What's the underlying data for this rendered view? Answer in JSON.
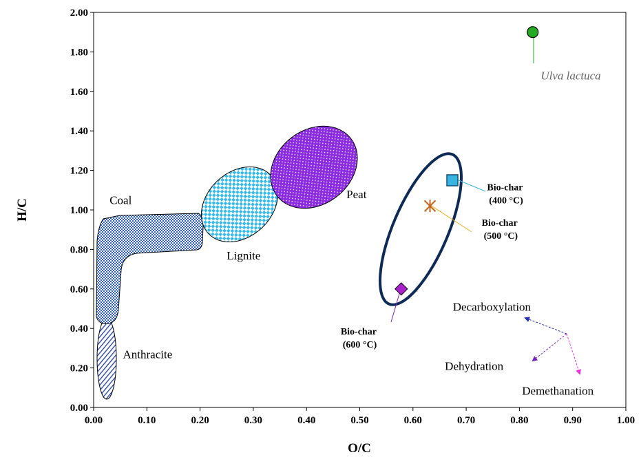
{
  "chart_data": {
    "type": "scatter",
    "title": "",
    "xlabel": "O/C",
    "ylabel": "H/C",
    "xlim": [
      0,
      1
    ],
    "ylim": [
      0,
      2
    ],
    "xticks": [
      "0.00",
      "0.10",
      "0.20",
      "0.30",
      "0.40",
      "0.50",
      "0.60",
      "0.70",
      "0.80",
      "0.90",
      "1.00"
    ],
    "yticks": [
      "0.00",
      "0.20",
      "0.40",
      "0.60",
      "0.80",
      "1.00",
      "1.20",
      "1.40",
      "1.60",
      "1.80",
      "2.00"
    ],
    "grid": false,
    "regions": [
      {
        "label": "Anthracite",
        "pattern": "hatch",
        "color": "#1f3fa8",
        "label_x": 0.055,
        "label_y": 0.25
      },
      {
        "label": "Coal",
        "pattern": "dots",
        "color": "#2f66c4",
        "label_x": 0.03,
        "label_y": 1.03
      },
      {
        "label": "Lignite",
        "pattern": "checker",
        "color": "#33bbee",
        "label_x": 0.25,
        "label_y": 0.75
      },
      {
        "label": "Peat",
        "pattern": "dots",
        "color": "#8a2be2",
        "label_x": 0.475,
        "label_y": 1.06
      }
    ],
    "points": [
      {
        "name": "Ulva lactuca",
        "x": 0.825,
        "y": 1.9,
        "marker": "circle",
        "color": "#22aa22",
        "label_x": 0.84,
        "label_y": 1.66
      },
      {
        "name": "Bio-char (400 °C)",
        "label_lines": [
          "Bio-char",
          "(400 °C)"
        ],
        "x": 0.674,
        "y": 1.15,
        "marker": "square",
        "color": "#39b3e0",
        "label_x": 0.775,
        "label_y": 1.1
      },
      {
        "name": "Bio-char (500 °C)",
        "label_lines": [
          "Bio-char",
          "(500 °C)"
        ],
        "x": 0.632,
        "y": 1.02,
        "marker": "asterisk",
        "color": "#c8641e",
        "label_x": 0.765,
        "label_y": 0.92
      },
      {
        "name": "Bio-char (600 °C)",
        "label_lines": [
          "Bio-char",
          "(600 °C)"
        ],
        "x": 0.578,
        "y": 0.6,
        "marker": "diamond",
        "color": "#aa22cc",
        "label_x": 0.5,
        "label_y": 0.37
      }
    ],
    "mechanisms": [
      {
        "label": "Decarboxylation",
        "color": "#2233bb",
        "label_x": 0.675,
        "label_y": 0.49
      },
      {
        "label": "Dehydration",
        "color": "#7722bb",
        "label_x": 0.66,
        "label_y": 0.19
      },
      {
        "label": "Demethanation",
        "color": "#ee33dd",
        "label_x": 0.805,
        "label_y": 0.065
      }
    ]
  }
}
